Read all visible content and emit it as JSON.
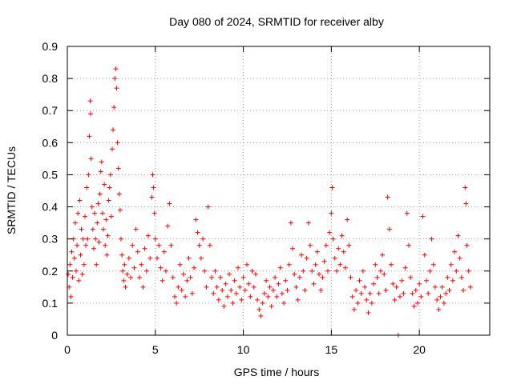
{
  "chart_data": {
    "type": "scatter",
    "title": "Day 080 of 2024, SRMTID for receiver alby",
    "xlabel": "GPS time / hours",
    "ylabel": "SRMTID / TECUs",
    "xlim": [
      0,
      24
    ],
    "ylim": [
      0,
      0.9
    ],
    "xticks": [
      0,
      5,
      10,
      15,
      20
    ],
    "yticks": [
      0,
      0.1,
      0.2,
      0.3,
      0.4,
      0.5,
      0.6,
      0.7,
      0.8,
      0.9
    ],
    "grid": true,
    "marker": "+",
    "color": "#ff0000",
    "series": [
      {
        "name": "SRMTID",
        "points": [
          [
            0.05,
            0.19
          ],
          [
            0.1,
            0.15
          ],
          [
            0.15,
            0.22
          ],
          [
            0.2,
            0.12
          ],
          [
            0.25,
            0.26
          ],
          [
            0.3,
            0.18
          ],
          [
            0.35,
            0.3
          ],
          [
            0.4,
            0.24
          ],
          [
            0.45,
            0.35
          ],
          [
            0.5,
            0.2
          ],
          [
            0.55,
            0.28
          ],
          [
            0.6,
            0.38
          ],
          [
            0.65,
            0.17
          ],
          [
            0.7,
            0.42
          ],
          [
            0.75,
            0.25
          ],
          [
            0.8,
            0.33
          ],
          [
            0.85,
            0.19
          ],
          [
            0.9,
            0.3
          ],
          [
            0.95,
            0.22
          ],
          [
            1.0,
            0.37
          ],
          [
            1.05,
            0.28
          ],
          [
            1.1,
            0.46
          ],
          [
            1.15,
            0.3
          ],
          [
            1.2,
            0.5
          ],
          [
            1.25,
            0.62
          ],
          [
            1.3,
            0.73
          ],
          [
            1.32,
            0.69
          ],
          [
            1.35,
            0.55
          ],
          [
            1.4,
            0.4
          ],
          [
            1.45,
            0.33
          ],
          [
            1.5,
            0.27
          ],
          [
            1.55,
            0.38
          ],
          [
            1.6,
            0.3
          ],
          [
            1.65,
            0.22
          ],
          [
            1.7,
            0.35
          ],
          [
            1.75,
            0.41
          ],
          [
            1.8,
            0.29
          ],
          [
            1.85,
            0.44
          ],
          [
            1.9,
            0.51
          ],
          [
            1.95,
            0.54
          ],
          [
            2.0,
            0.38
          ],
          [
            2.05,
            0.33
          ],
          [
            2.1,
            0.47
          ],
          [
            2.15,
            0.28
          ],
          [
            2.2,
            0.36
          ],
          [
            2.25,
            0.25
          ],
          [
            2.3,
            0.31
          ],
          [
            2.35,
            0.42
          ],
          [
            2.4,
            0.46
          ],
          [
            2.45,
            0.5
          ],
          [
            2.5,
            0.37
          ],
          [
            2.55,
            0.58
          ],
          [
            2.6,
            0.64
          ],
          [
            2.65,
            0.71
          ],
          [
            2.7,
            0.8
          ],
          [
            2.75,
            0.83
          ],
          [
            2.8,
            0.77
          ],
          [
            2.85,
            0.6
          ],
          [
            2.9,
            0.52
          ],
          [
            2.95,
            0.44
          ],
          [
            3.0,
            0.39
          ],
          [
            3.05,
            0.3
          ],
          [
            3.1,
            0.25
          ],
          [
            3.15,
            0.2
          ],
          [
            3.2,
            0.17
          ],
          [
            3.25,
            0.22
          ],
          [
            3.3,
            0.15
          ],
          [
            3.4,
            0.19
          ],
          [
            3.5,
            0.24
          ],
          [
            3.6,
            0.18
          ],
          [
            3.7,
            0.28
          ],
          [
            3.8,
            0.21
          ],
          [
            3.9,
            0.33
          ],
          [
            4.0,
            0.26
          ],
          [
            4.1,
            0.18
          ],
          [
            4.2,
            0.22
          ],
          [
            4.3,
            0.15
          ],
          [
            4.4,
            0.27
          ],
          [
            4.5,
            0.2
          ],
          [
            4.6,
            0.31
          ],
          [
            4.7,
            0.24
          ],
          [
            4.8,
            0.43
          ],
          [
            4.85,
            0.5
          ],
          [
            4.9,
            0.46
          ],
          [
            4.95,
            0.38
          ],
          [
            5.0,
            0.3
          ],
          [
            5.1,
            0.24
          ],
          [
            5.2,
            0.28
          ],
          [
            5.3,
            0.21
          ],
          [
            5.4,
            0.17
          ],
          [
            5.5,
            0.26
          ],
          [
            5.6,
            0.2
          ],
          [
            5.7,
            0.34
          ],
          [
            5.8,
            0.41
          ],
          [
            5.9,
            0.28
          ],
          [
            6.0,
            0.18
          ],
          [
            6.1,
            0.12
          ],
          [
            6.2,
            0.1
          ],
          [
            6.3,
            0.15
          ],
          [
            6.4,
            0.22
          ],
          [
            6.5,
            0.14
          ],
          [
            6.6,
            0.19
          ],
          [
            6.7,
            0.12
          ],
          [
            6.8,
            0.17
          ],
          [
            6.9,
            0.24
          ],
          [
            7.0,
            0.18
          ],
          [
            7.1,
            0.13
          ],
          [
            7.2,
            0.21
          ],
          [
            7.3,
            0.36
          ],
          [
            7.4,
            0.32
          ],
          [
            7.5,
            0.28
          ],
          [
            7.6,
            0.24
          ],
          [
            7.7,
            0.3
          ],
          [
            7.8,
            0.2
          ],
          [
            7.9,
            0.15
          ],
          [
            8.0,
            0.4
          ],
          [
            8.1,
            0.28
          ],
          [
            8.2,
            0.18
          ],
          [
            8.3,
            0.13
          ],
          [
            8.4,
            0.2
          ],
          [
            8.5,
            0.15
          ],
          [
            8.6,
            0.11
          ],
          [
            8.7,
            0.18
          ],
          [
            8.8,
            0.14
          ],
          [
            8.9,
            0.09
          ],
          [
            9.0,
            0.16
          ],
          [
            9.1,
            0.12
          ],
          [
            9.2,
            0.19
          ],
          [
            9.3,
            0.14
          ],
          [
            9.4,
            0.1
          ],
          [
            9.5,
            0.17
          ],
          [
            9.6,
            0.13
          ],
          [
            9.7,
            0.21
          ],
          [
            9.8,
            0.15
          ],
          [
            9.9,
            0.11
          ],
          [
            10.0,
            0.18
          ],
          [
            10.1,
            0.14
          ],
          [
            10.2,
            0.22
          ],
          [
            10.3,
            0.16
          ],
          [
            10.4,
            0.12
          ],
          [
            10.5,
            0.2
          ],
          [
            10.6,
            0.15
          ],
          [
            10.7,
            0.19
          ],
          [
            10.8,
            0.11
          ],
          [
            10.9,
            0.08
          ],
          [
            11.0,
            0.06
          ],
          [
            11.1,
            0.1
          ],
          [
            11.2,
            0.13
          ],
          [
            11.3,
            0.17
          ],
          [
            11.4,
            0.12
          ],
          [
            11.5,
            0.15
          ],
          [
            11.6,
            0.09
          ],
          [
            11.7,
            0.14
          ],
          [
            11.8,
            0.18
          ],
          [
            11.9,
            0.12
          ],
          [
            12.0,
            0.16
          ],
          [
            12.1,
            0.21
          ],
          [
            12.2,
            0.13
          ],
          [
            12.3,
            0.1
          ],
          [
            12.4,
            0.17
          ],
          [
            12.5,
            0.14
          ],
          [
            12.6,
            0.22
          ],
          [
            12.7,
            0.35
          ],
          [
            12.8,
            0.27
          ],
          [
            12.9,
            0.19
          ],
          [
            13.0,
            0.15
          ],
          [
            13.1,
            0.11
          ],
          [
            13.2,
            0.18
          ],
          [
            13.3,
            0.25
          ],
          [
            13.4,
            0.2
          ],
          [
            13.5,
            0.14
          ],
          [
            13.6,
            0.24
          ],
          [
            13.7,
            0.35
          ],
          [
            13.8,
            0.28
          ],
          [
            13.9,
            0.2
          ],
          [
            14.0,
            0.16
          ],
          [
            14.1,
            0.22
          ],
          [
            14.2,
            0.26
          ],
          [
            14.3,
            0.19
          ],
          [
            14.4,
            0.14
          ],
          [
            14.5,
            0.18
          ],
          [
            14.6,
            0.23
          ],
          [
            14.7,
            0.28
          ],
          [
            14.8,
            0.2
          ],
          [
            14.9,
            0.32
          ],
          [
            15.0,
            0.38
          ],
          [
            15.05,
            0.46
          ],
          [
            15.1,
            0.3
          ],
          [
            15.2,
            0.24
          ],
          [
            15.3,
            0.2
          ],
          [
            15.4,
            0.27
          ],
          [
            15.5,
            0.22
          ],
          [
            15.6,
            0.31
          ],
          [
            15.7,
            0.26
          ],
          [
            15.8,
            0.21
          ],
          [
            15.9,
            0.36
          ],
          [
            16.0,
            0.28
          ],
          [
            16.1,
            0.18
          ],
          [
            16.2,
            0.12
          ],
          [
            16.3,
            0.08
          ],
          [
            16.4,
            0.14
          ],
          [
            16.5,
            0.1
          ],
          [
            16.6,
            0.17
          ],
          [
            16.7,
            0.13
          ],
          [
            16.8,
            0.2
          ],
          [
            16.9,
            0.15
          ],
          [
            17.0,
            0.11
          ],
          [
            17.1,
            0.07
          ],
          [
            17.2,
            0.13
          ],
          [
            17.3,
            0.1
          ],
          [
            17.4,
            0.16
          ],
          [
            17.5,
            0.22
          ],
          [
            17.6,
            0.18
          ],
          [
            17.7,
            0.13
          ],
          [
            17.8,
            0.2
          ],
          [
            17.9,
            0.25
          ],
          [
            18.0,
            0.19
          ],
          [
            18.1,
            0.14
          ],
          [
            18.2,
            0.43
          ],
          [
            18.3,
            0.33
          ],
          [
            18.4,
            0.22
          ],
          [
            18.5,
            0.16
          ],
          [
            18.6,
            0.11
          ],
          [
            18.7,
            0.15
          ],
          [
            18.8,
            0.0
          ],
          [
            18.9,
            0.12
          ],
          [
            19.0,
            0.17
          ],
          [
            19.1,
            0.13
          ],
          [
            19.2,
            0.21
          ],
          [
            19.3,
            0.38
          ],
          [
            19.4,
            0.28
          ],
          [
            19.5,
            0.18
          ],
          [
            19.6,
            0.13
          ],
          [
            19.7,
            0.09
          ],
          [
            19.8,
            0.14
          ],
          [
            19.9,
            0.1
          ],
          [
            20.0,
            0.16
          ],
          [
            20.1,
            0.12
          ],
          [
            20.2,
            0.37
          ],
          [
            20.3,
            0.25
          ],
          [
            20.4,
            0.17
          ],
          [
            20.5,
            0.13
          ],
          [
            20.6,
            0.2
          ],
          [
            20.7,
            0.3
          ],
          [
            20.8,
            0.22
          ],
          [
            20.9,
            0.15
          ],
          [
            21.0,
            0.11
          ],
          [
            21.1,
            0.08
          ],
          [
            21.2,
            0.12
          ],
          [
            21.3,
            0.15
          ],
          [
            21.4,
            0.1
          ],
          [
            21.5,
            0.13
          ],
          [
            21.6,
            0.18
          ],
          [
            21.7,
            0.14
          ],
          [
            21.8,
            0.22
          ],
          [
            21.9,
            0.17
          ],
          [
            22.0,
            0.26
          ],
          [
            22.1,
            0.2
          ],
          [
            22.2,
            0.31
          ],
          [
            22.3,
            0.24
          ],
          [
            22.4,
            0.18
          ],
          [
            22.5,
            0.14
          ],
          [
            22.6,
            0.46
          ],
          [
            22.65,
            0.41
          ],
          [
            22.7,
            0.28
          ],
          [
            22.8,
            0.2
          ],
          [
            22.9,
            0.15
          ]
        ]
      }
    ]
  }
}
